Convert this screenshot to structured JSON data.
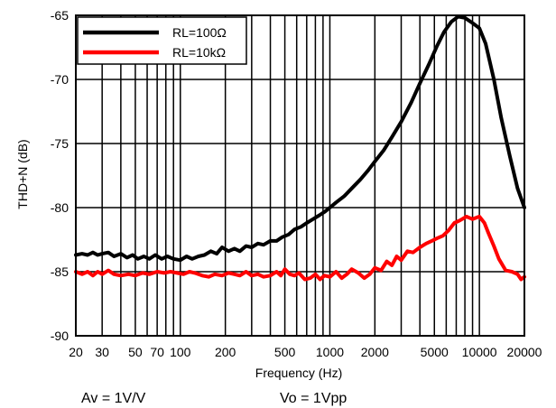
{
  "chart_data": {
    "type": "line",
    "title": "",
    "xlabel": "Frequency (Hz)",
    "ylabel": "THD+N (dB)",
    "x_scale": "log",
    "xlim": [
      20,
      20000
    ],
    "ylim": [
      -90,
      -65
    ],
    "grid": true,
    "x_tick_labels": [
      "20",
      "30",
      "50",
      "70",
      "100",
      "200",
      "500",
      "1000",
      "2000",
      "5000",
      "10000",
      "20000"
    ],
    "x_tick_values": [
      20,
      30,
      50,
      70,
      100,
      200,
      500,
      1000,
      2000,
      5000,
      10000,
      20000
    ],
    "y_tick_labels": [
      "-65",
      "-70",
      "-75",
      "-80",
      "-85",
      "-90"
    ],
    "y_tick_values": [
      -65,
      -70,
      -75,
      -80,
      -85,
      -90
    ],
    "legend_position": "top-left",
    "series": [
      {
        "name": "RL=100Ω",
        "color": "#000000",
        "points": [
          [
            20,
            -83.7
          ],
          [
            22,
            -83.6
          ],
          [
            24,
            -83.7
          ],
          [
            26,
            -83.5
          ],
          [
            28,
            -83.7
          ],
          [
            30,
            -83.6
          ],
          [
            33,
            -83.5
          ],
          [
            36,
            -83.8
          ],
          [
            40,
            -83.6
          ],
          [
            44,
            -83.9
          ],
          [
            48,
            -83.7
          ],
          [
            52,
            -84.0
          ],
          [
            57,
            -83.8
          ],
          [
            62,
            -84.0
          ],
          [
            68,
            -83.7
          ],
          [
            75,
            -84.0
          ],
          [
            82,
            -83.8
          ],
          [
            90,
            -84.0
          ],
          [
            100,
            -84.1
          ],
          [
            110,
            -83.8
          ],
          [
            120,
            -84.0
          ],
          [
            132,
            -83.8
          ],
          [
            145,
            -83.7
          ],
          [
            160,
            -83.4
          ],
          [
            175,
            -83.6
          ],
          [
            190,
            -83.1
          ],
          [
            210,
            -83.4
          ],
          [
            230,
            -83.2
          ],
          [
            250,
            -83.4
          ],
          [
            275,
            -83.0
          ],
          [
            300,
            -83.1
          ],
          [
            330,
            -82.8
          ],
          [
            360,
            -82.9
          ],
          [
            400,
            -82.6
          ],
          [
            440,
            -82.6
          ],
          [
            480,
            -82.3
          ],
          [
            530,
            -82.1
          ],
          [
            580,
            -81.7
          ],
          [
            640,
            -81.5
          ],
          [
            700,
            -81.2
          ],
          [
            770,
            -80.9
          ],
          [
            850,
            -80.6
          ],
          [
            930,
            -80.3
          ],
          [
            1000,
            -80.0
          ],
          [
            1100,
            -79.6
          ],
          [
            1250,
            -79.1
          ],
          [
            1400,
            -78.5
          ],
          [
            1600,
            -77.8
          ],
          [
            1800,
            -77.1
          ],
          [
            2000,
            -76.4
          ],
          [
            2300,
            -75.5
          ],
          [
            2600,
            -74.5
          ],
          [
            3000,
            -73.3
          ],
          [
            3500,
            -71.8
          ],
          [
            4000,
            -70.3
          ],
          [
            4600,
            -68.8
          ],
          [
            5200,
            -67.4
          ],
          [
            5800,
            -66.3
          ],
          [
            6500,
            -65.5
          ],
          [
            7200,
            -65.1
          ],
          [
            8000,
            -65.2
          ],
          [
            9000,
            -65.6
          ],
          [
            10000,
            -66.0
          ],
          [
            11000,
            -67.2
          ],
          [
            12500,
            -70.0
          ],
          [
            14000,
            -73.0
          ],
          [
            16000,
            -76.0
          ],
          [
            18000,
            -78.5
          ],
          [
            20000,
            -80.0
          ]
        ]
      },
      {
        "name": "RL=10kΩ",
        "color": "#ff0000",
        "points": [
          [
            20,
            -85.0
          ],
          [
            22,
            -85.2
          ],
          [
            24,
            -85.0
          ],
          [
            26,
            -85.3
          ],
          [
            28,
            -85.0
          ],
          [
            30,
            -85.2
          ],
          [
            33,
            -84.9
          ],
          [
            36,
            -85.2
          ],
          [
            40,
            -85.3
          ],
          [
            45,
            -85.2
          ],
          [
            50,
            -85.3
          ],
          [
            56,
            -85.1
          ],
          [
            62,
            -85.2
          ],
          [
            70,
            -85.0
          ],
          [
            78,
            -85.1
          ],
          [
            86,
            -85.0
          ],
          [
            95,
            -85.1
          ],
          [
            105,
            -85.2
          ],
          [
            115,
            -85.0
          ],
          [
            125,
            -85.1
          ],
          [
            140,
            -85.3
          ],
          [
            155,
            -85.4
          ],
          [
            170,
            -85.2
          ],
          [
            190,
            -85.3
          ],
          [
            210,
            -85.1
          ],
          [
            230,
            -85.2
          ],
          [
            250,
            -85.3
          ],
          [
            275,
            -85.0
          ],
          [
            300,
            -85.3
          ],
          [
            330,
            -85.2
          ],
          [
            360,
            -85.4
          ],
          [
            400,
            -85.3
          ],
          [
            440,
            -85.0
          ],
          [
            470,
            -85.3
          ],
          [
            500,
            -84.8
          ],
          [
            540,
            -85.2
          ],
          [
            580,
            -85.3
          ],
          [
            620,
            -85.1
          ],
          [
            680,
            -85.6
          ],
          [
            740,
            -85.5
          ],
          [
            800,
            -85.2
          ],
          [
            860,
            -85.6
          ],
          [
            920,
            -85.3
          ],
          [
            1000,
            -85.4
          ],
          [
            1100,
            -85.0
          ],
          [
            1200,
            -85.5
          ],
          [
            1300,
            -85.2
          ],
          [
            1400,
            -84.8
          ],
          [
            1550,
            -85.1
          ],
          [
            1700,
            -85.5
          ],
          [
            1850,
            -85.2
          ],
          [
            2000,
            -84.7
          ],
          [
            2200,
            -84.9
          ],
          [
            2400,
            -84.2
          ],
          [
            2600,
            -84.5
          ],
          [
            2800,
            -83.8
          ],
          [
            3000,
            -84.1
          ],
          [
            3300,
            -83.4
          ],
          [
            3600,
            -83.5
          ],
          [
            4000,
            -83.1
          ],
          [
            4400,
            -82.8
          ],
          [
            4800,
            -82.6
          ],
          [
            5200,
            -82.4
          ],
          [
            5700,
            -82.2
          ],
          [
            6200,
            -81.8
          ],
          [
            6800,
            -81.2
          ],
          [
            7400,
            -81.0
          ],
          [
            8200,
            -80.7
          ],
          [
            9000,
            -80.9
          ],
          [
            10000,
            -80.7
          ],
          [
            10800,
            -81.2
          ],
          [
            11500,
            -82.0
          ],
          [
            12500,
            -83.0
          ],
          [
            13500,
            -84.0
          ],
          [
            15000,
            -84.9
          ],
          [
            16500,
            -85.0
          ],
          [
            18000,
            -85.2
          ],
          [
            19000,
            -85.6
          ],
          [
            20000,
            -85.4
          ]
        ]
      }
    ]
  },
  "notes": {
    "gain": "Av = 1V/V",
    "vout": "Vo = 1Vpp"
  }
}
